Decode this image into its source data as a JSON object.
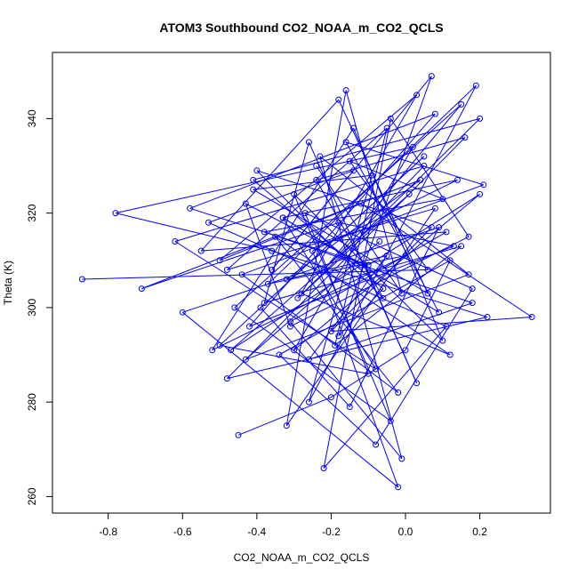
{
  "chart_data": {
    "type": "scatter",
    "title": "ATOM3 Southbound CO2_NOAA_m_CO2_QCLS",
    "xlabel": "CO2_NOAA_m_CO2_QCLS",
    "ylabel": "Theta (K)",
    "xlim": [
      -0.95,
      0.39
    ],
    "ylim": [
      256.5,
      354.0
    ],
    "x_ticks": [
      -0.8,
      -0.6,
      -0.4,
      -0.2,
      0.0,
      0.2
    ],
    "x_tick_labels": [
      "-0.8",
      "-0.6",
      "-0.4",
      "-0.2",
      "0.0",
      "0.2"
    ],
    "y_ticks": [
      260,
      280,
      300,
      320,
      340
    ],
    "y_tick_labels": [
      "260",
      "280",
      "300",
      "320",
      "340"
    ],
    "grid": false,
    "legend": "none",
    "color": "#0000ff",
    "marker": "open-circle",
    "connected": true,
    "series": [
      {
        "x": [
          -0.87,
          0.06,
          -0.15,
          0.1,
          -0.38,
          0.18,
          -0.26,
          -0.05,
          -0.32,
          0.04,
          -0.71,
          -0.18,
          0.13,
          -0.42,
          0.08,
          -0.58,
          -0.1,
          0.2,
          -0.3,
          0.02,
          -0.78,
          -0.36,
          0.22,
          -0.48,
          0.16,
          -0.24,
          -0.06,
          -0.4,
          0.07,
          -0.2,
          0.34,
          -0.12,
          -0.5,
          0.03,
          -0.28,
          0.12,
          -0.35,
          -0.02,
          -0.44,
          0.21,
          -0.16,
          0.09,
          -0.33,
          -0.08,
          -0.62,
          0.05,
          -0.22,
          0.15,
          -0.46,
          -0.04,
          -0.3,
          0.1,
          -0.14,
          -0.52,
          0.0,
          -0.37,
          0.19,
          -0.26,
          -0.09,
          -0.41,
          0.06,
          -0.18,
          -0.55,
          0.11,
          -0.31,
          -0.01,
          -0.23,
          0.17,
          -0.43,
          -0.07
        ],
        "y": [
          306,
          308,
          331,
          323,
          316,
          301,
          289,
          311,
          306,
          327,
          304,
          318,
          313,
          296,
          341,
          321,
          309,
          324,
          291,
          334,
          320,
          312,
          298,
          285,
          336,
          327,
          302,
          329,
          317,
          295,
          298,
          322,
          310,
          345,
          303,
          290,
          315,
          282,
          307,
          326,
          335,
          299,
          319,
          287,
          314,
          330,
          308,
          343,
          300,
          276,
          324,
          293,
          338,
          291,
          311,
          305,
          347,
          280,
          328,
          325,
          303,
          344,
          312,
          316,
          297,
          268,
          332,
          307,
          289,
          314
        ]
      },
      {
        "x": [
          -0.45,
          -0.2,
          0.0,
          0.12,
          -0.34,
          -0.08,
          0.18,
          -0.27,
          -0.1,
          -0.5,
          0.05,
          -0.39,
          -0.15,
          0.09,
          -0.6,
          -0.02,
          -0.25,
          0.14,
          -0.33,
          -0.12,
          -0.47,
          0.01,
          -0.29,
          0.2,
          -0.41,
          -0.06,
          -0.18,
          0.07,
          -0.36,
          -0.14,
          -0.53,
          0.11,
          -0.22,
          -0.04,
          0.17,
          -0.31,
          -0.43,
          -0.11,
          0.03,
          -0.26,
          -0.38,
          0.15,
          -0.19,
          -0.05,
          -0.48,
          0.08,
          -0.32,
          -0.16,
          -0.01,
          -0.24
        ],
        "y": [
          273,
          281,
          291,
          310,
          290,
          271,
          304,
          320,
          286,
          292,
          332,
          300,
          279,
          317,
          299,
          262,
          312,
          327,
          319,
          309,
          291,
          324,
          302,
          340,
          327,
          304,
          294,
          349,
          308,
          329,
          318,
          296,
          266,
          340,
          315,
          296,
          322,
          309,
          284,
          335,
          301,
          313,
          292,
          338,
          308,
          321,
          275,
          346,
          303,
          330
        ]
      }
    ]
  }
}
